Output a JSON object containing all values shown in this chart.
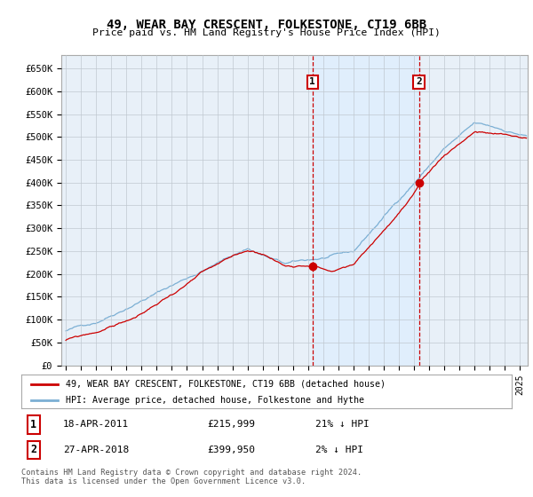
{
  "title": "49, WEAR BAY CRESCENT, FOLKESTONE, CT19 6BB",
  "subtitle": "Price paid vs. HM Land Registry's House Price Index (HPI)",
  "ylim": [
    0,
    680000
  ],
  "xlim_start": 1994.7,
  "xlim_end": 2025.5,
  "sale1_x": 2011.29,
  "sale1_y": 215999,
  "sale2_x": 2018.32,
  "sale2_y": 399950,
  "sale1_label": "1",
  "sale2_label": "2",
  "legend_line1": "49, WEAR BAY CRESCENT, FOLKESTONE, CT19 6BB (detached house)",
  "legend_line2": "HPI: Average price, detached house, Folkestone and Hythe",
  "footnote": "Contains HM Land Registry data © Crown copyright and database right 2024.\nThis data is licensed under the Open Government Licence v3.0.",
  "line_color_red": "#cc0000",
  "line_color_blue": "#7bafd4",
  "shade_color": "#ddeeff",
  "background_color": "#e8f0f8",
  "grid_color": "#c0c8d0",
  "vline_color": "#cc0000"
}
